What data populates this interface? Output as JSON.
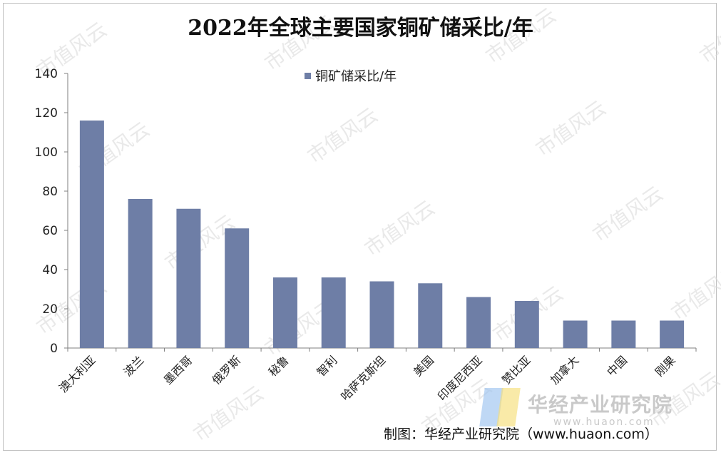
{
  "chart_data": {
    "type": "bar",
    "title": "2022年全球主要国家铜矿储采比/年",
    "categories": [
      "澳大利亚",
      "波兰",
      "墨西哥",
      "俄罗斯",
      "秘鲁",
      "智利",
      "哈萨克斯坦",
      "美国",
      "印度尼西亚",
      "赞比亚",
      "加拿大",
      "中国",
      "刚果"
    ],
    "series": [
      {
        "name": "铜矿储采比/年",
        "values": [
          116,
          76,
          71,
          61,
          36,
          36,
          34,
          33,
          26,
          24,
          14,
          14,
          14
        ],
        "color": "#6e7ea6"
      }
    ],
    "ylim": [
      0,
      140
    ],
    "yticks": [
      0,
      20,
      40,
      60,
      80,
      100,
      120,
      140
    ],
    "grid": false,
    "legend_position": "top-center"
  },
  "watermark": {
    "text": "市值风云"
  },
  "logo": {
    "name": "华经产业研究院",
    "url": "www.huaon.com"
  },
  "source_note": "制图：华经产业研究院（www.huaon.com）"
}
